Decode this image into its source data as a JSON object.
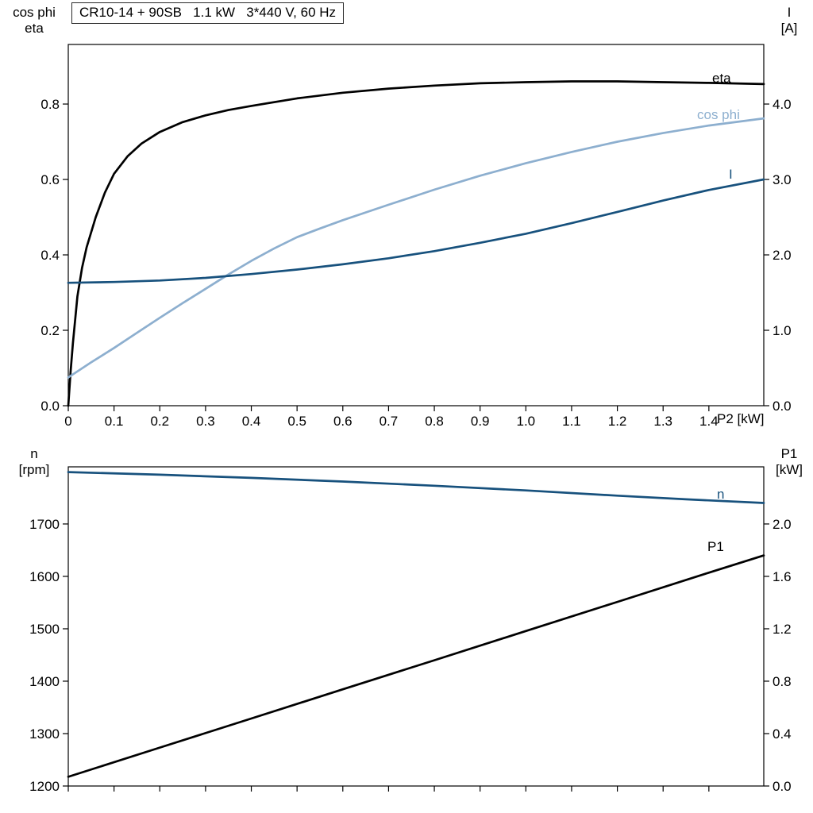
{
  "colors": {
    "black": "#000000",
    "dark_blue": "#17517d",
    "light_blue": "#8dafcf",
    "frame": "#000000"
  },
  "chart_data": [
    {
      "type": "line",
      "title": "CR10-14 + 90SB   1.1 kW   3*440 V, 60 Hz",
      "x_axis": {
        "label": "P2 [kW]",
        "min": 0,
        "max": 1.52,
        "ticks": [
          0,
          0.1,
          0.2,
          0.3,
          0.4,
          0.5,
          0.6,
          0.7,
          0.8,
          0.9,
          1.0,
          1.1,
          1.2,
          1.3,
          1.4
        ],
        "tick_labels": [
          "0",
          "0.1",
          "0.2",
          "0.3",
          "0.4",
          "0.5",
          "0.6",
          "0.7",
          "0.8",
          "0.9",
          "1.0",
          "1.1",
          "1.2",
          "1.3",
          "1.4"
        ]
      },
      "y_left": {
        "label_lines": [
          "cos phi",
          "eta"
        ],
        "min": 0,
        "max": 0.958,
        "ticks": [
          0.0,
          0.2,
          0.4,
          0.6,
          0.8
        ],
        "tick_labels": [
          "0.0",
          "0.2",
          "0.4",
          "0.6",
          "0.8"
        ]
      },
      "y_right": {
        "label_lines": [
          "I",
          "[A]"
        ],
        "min": 0,
        "max": 4.79,
        "ticks": [
          0.0,
          1.0,
          2.0,
          3.0,
          4.0
        ],
        "tick_labels": [
          "0.0",
          "1.0",
          "2.0",
          "3.0",
          "4.0"
        ]
      },
      "series": [
        {
          "name": "eta",
          "axis": "left",
          "color": "black",
          "points": [
            [
              0,
              0
            ],
            [
              0.005,
              0.09
            ],
            [
              0.01,
              0.165
            ],
            [
              0.02,
              0.29
            ],
            [
              0.03,
              0.365
            ],
            [
              0.04,
              0.42
            ],
            [
              0.06,
              0.5
            ],
            [
              0.08,
              0.565
            ],
            [
              0.1,
              0.615
            ],
            [
              0.13,
              0.662
            ],
            [
              0.16,
              0.695
            ],
            [
              0.2,
              0.726
            ],
            [
              0.25,
              0.752
            ],
            [
              0.3,
              0.77
            ],
            [
              0.35,
              0.784
            ],
            [
              0.4,
              0.795
            ],
            [
              0.5,
              0.815
            ],
            [
              0.6,
              0.83
            ],
            [
              0.7,
              0.841
            ],
            [
              0.8,
              0.849
            ],
            [
              0.9,
              0.855
            ],
            [
              1.0,
              0.858
            ],
            [
              1.1,
              0.86
            ],
            [
              1.2,
              0.86
            ],
            [
              1.3,
              0.858
            ],
            [
              1.4,
              0.856
            ],
            [
              1.52,
              0.853
            ]
          ]
        },
        {
          "name": "cos phi",
          "axis": "left",
          "color": "light_blue",
          "points": [
            [
              0,
              0.075
            ],
            [
              0.05,
              0.115
            ],
            [
              0.1,
              0.153
            ],
            [
              0.15,
              0.193
            ],
            [
              0.2,
              0.233
            ],
            [
              0.25,
              0.272
            ],
            [
              0.3,
              0.31
            ],
            [
              0.35,
              0.348
            ],
            [
              0.4,
              0.384
            ],
            [
              0.45,
              0.417
            ],
            [
              0.5,
              0.447
            ],
            [
              0.55,
              0.47
            ],
            [
              0.6,
              0.492
            ],
            [
              0.7,
              0.533
            ],
            [
              0.8,
              0.573
            ],
            [
              0.9,
              0.61
            ],
            [
              1.0,
              0.643
            ],
            [
              1.1,
              0.673
            ],
            [
              1.2,
              0.7
            ],
            [
              1.3,
              0.723
            ],
            [
              1.4,
              0.743
            ],
            [
              1.52,
              0.762
            ]
          ]
        },
        {
          "name": "I",
          "axis": "right",
          "color": "dark_blue",
          "points": [
            [
              0,
              1.63
            ],
            [
              0.1,
              1.64
            ],
            [
              0.2,
              1.66
            ],
            [
              0.3,
              1.695
            ],
            [
              0.4,
              1.745
            ],
            [
              0.5,
              1.805
            ],
            [
              0.6,
              1.875
            ],
            [
              0.7,
              1.955
            ],
            [
              0.8,
              2.05
            ],
            [
              0.9,
              2.16
            ],
            [
              1.0,
              2.28
            ],
            [
              1.1,
              2.42
            ],
            [
              1.2,
              2.57
            ],
            [
              1.3,
              2.72
            ],
            [
              1.4,
              2.86
            ],
            [
              1.52,
              3.0
            ]
          ]
        }
      ]
    },
    {
      "type": "line",
      "x_axis": {
        "label": "",
        "min": 0,
        "max": 1.52,
        "ticks": [
          0,
          0.1,
          0.2,
          0.3,
          0.4,
          0.5,
          0.6,
          0.7,
          0.8,
          0.9,
          1.0,
          1.1,
          1.2,
          1.3,
          1.4
        ],
        "tick_labels": []
      },
      "y_left": {
        "label_lines": [
          "n",
          "[rpm]"
        ],
        "min": 1200,
        "max": 1809,
        "ticks": [
          1200,
          1300,
          1400,
          1500,
          1600,
          1700
        ],
        "tick_labels": [
          "1200",
          "1300",
          "1400",
          "1500",
          "1600",
          "1700"
        ]
      },
      "y_right": {
        "label_lines": [
          "P1",
          "[kW]"
        ],
        "min": 0,
        "max": 2.436,
        "ticks": [
          0.0,
          0.4,
          0.8,
          1.2,
          1.6,
          2.0
        ],
        "tick_labels": [
          "0.0",
          "0.4",
          "0.8",
          "1.2",
          "1.6",
          "2.0"
        ]
      },
      "series": [
        {
          "name": "n",
          "axis": "left",
          "color": "dark_blue",
          "points": [
            [
              0,
              1799
            ],
            [
              0.2,
              1794
            ],
            [
              0.4,
              1788
            ],
            [
              0.6,
              1781
            ],
            [
              0.8,
              1773
            ],
            [
              1.0,
              1764
            ],
            [
              1.2,
              1754
            ],
            [
              1.35,
              1747
            ],
            [
              1.52,
              1740
            ]
          ]
        },
        {
          "name": "P1",
          "axis": "right",
          "color": "black",
          "points": [
            [
              0,
              0.07
            ],
            [
              0.2,
              0.293
            ],
            [
              0.4,
              0.515
            ],
            [
              0.6,
              0.738
            ],
            [
              0.8,
              0.96
            ],
            [
              1.0,
              1.183
            ],
            [
              1.2,
              1.405
            ],
            [
              1.4,
              1.628
            ],
            [
              1.52,
              1.76
            ]
          ]
        }
      ]
    }
  ]
}
